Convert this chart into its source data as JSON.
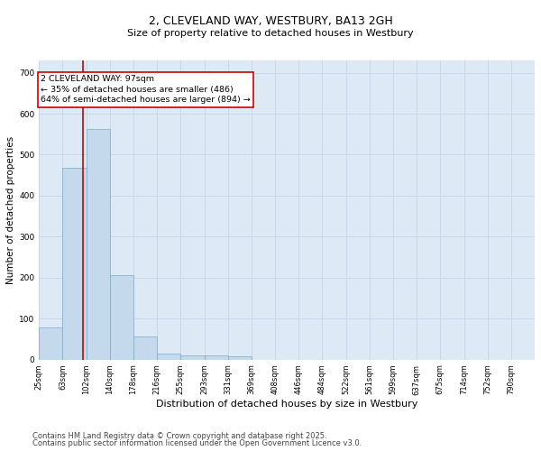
{
  "title_line1": "2, CLEVELAND WAY, WESTBURY, BA13 2GH",
  "title_line2": "Size of property relative to detached houses in Westbury",
  "xlabel": "Distribution of detached houses by size in Westbury",
  "ylabel": "Number of detached properties",
  "categories": [
    "25sqm",
    "63sqm",
    "102sqm",
    "140sqm",
    "178sqm",
    "216sqm",
    "255sqm",
    "293sqm",
    "331sqm",
    "369sqm",
    "408sqm",
    "446sqm",
    "484sqm",
    "522sqm",
    "561sqm",
    "599sqm",
    "637sqm",
    "675sqm",
    "714sqm",
    "752sqm",
    "790sqm"
  ],
  "bar_values": [
    78,
    468,
    563,
    207,
    57,
    15,
    10,
    10,
    8,
    0,
    0,
    0,
    0,
    0,
    0,
    0,
    0,
    0,
    0,
    0
  ],
  "bar_color": "#c5d9ed",
  "bar_edge_color": "#7aaac8",
  "grid_color": "#c8d8e8",
  "background_color": "#dde9f4",
  "annotation_text": "2 CLEVELAND WAY: 97sqm\n← 35% of detached houses are smaller (486)\n64% of semi-detached houses are larger (894) →",
  "annotation_box_color": "#ffffff",
  "annotation_box_edge": "#cc0000",
  "annotation_text_color": "#000000",
  "vline_color": "#cc0000",
  "footer_line1": "Contains HM Land Registry data © Crown copyright and database right 2025.",
  "footer_line2": "Contains public sector information licensed under the Open Government Licence v3.0.",
  "ylim": [
    0,
    730
  ],
  "yticks": [
    0,
    100,
    200,
    300,
    400,
    500,
    600,
    700
  ],
  "title1_fontsize": 9,
  "title2_fontsize": 8,
  "xlabel_fontsize": 8,
  "ylabel_fontsize": 7.5,
  "tick_fontsize": 6,
  "footer_fontsize": 6
}
